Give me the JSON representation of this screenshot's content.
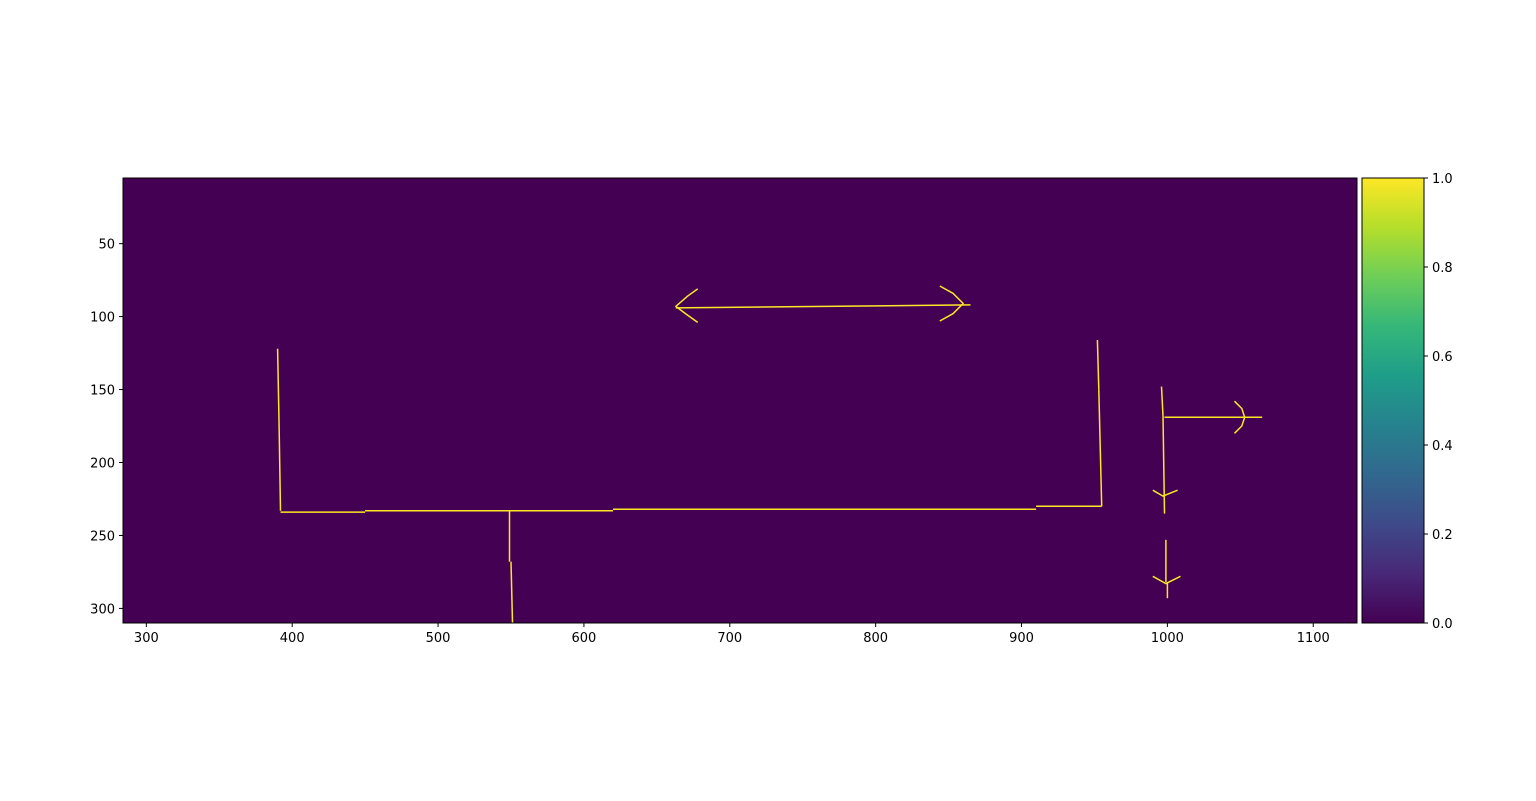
{
  "chart_data": {
    "type": "heatmap",
    "title": "",
    "xlabel": "",
    "ylabel": "",
    "xlim": [
      284,
      1130
    ],
    "ylim": [
      310,
      5
    ],
    "y_inverted": true,
    "grid": false,
    "x_ticks": [
      300,
      400,
      500,
      600,
      700,
      800,
      900,
      1000,
      1100
    ],
    "y_ticks": [
      50,
      100,
      150,
      200,
      250,
      300
    ],
    "background_value": 0.0,
    "line_value": 1.0,
    "colormap": "viridis",
    "colors": {
      "low": "#440154",
      "high": "#fde725"
    },
    "colorbar": {
      "placement": "right",
      "range": [
        0.0,
        1.0
      ],
      "ticks": [
        "0.0",
        "0.2",
        "0.4",
        "0.6",
        "0.8",
        "1.0"
      ],
      "stops": [
        "#440154",
        "#482878",
        "#3e4a89",
        "#31688e",
        "#26828e",
        "#1f9e89",
        "#35b779",
        "#6ece58",
        "#b5de2b",
        "#fde725"
      ]
    },
    "segments": [
      {
        "x": [
          390,
          391
        ],
        "y": [
          122,
          175
        ]
      },
      {
        "x": [
          391,
          392
        ],
        "y": [
          175,
          233
        ]
      },
      {
        "x": [
          392,
          450
        ],
        "y": [
          234,
          234
        ]
      },
      {
        "x": [
          450,
          620
        ],
        "y": [
          233,
          233
        ]
      },
      {
        "x": [
          620,
          910
        ],
        "y": [
          232,
          232
        ]
      },
      {
        "x": [
          910,
          955
        ],
        "y": [
          230,
          230
        ]
      },
      {
        "x": [
          952,
          953
        ],
        "y": [
          116,
          150
        ]
      },
      {
        "x": [
          953,
          955
        ],
        "y": [
          150,
          230
        ]
      },
      {
        "x": [
          549,
          549
        ],
        "y": [
          233,
          268
        ]
      },
      {
        "x": [
          550,
          551
        ],
        "y": [
          268,
          310
        ]
      },
      {
        "x": [
          663,
          865
        ],
        "y": [
          94,
          92
        ]
      },
      {
        "x": [
          678,
          671,
          663,
          671,
          678
        ],
        "y": [
          81,
          86,
          93,
          99,
          104
        ]
      },
      {
        "x": [
          844,
          853,
          860,
          853,
          844
        ],
        "y": [
          79,
          84,
          91,
          98,
          103
        ]
      },
      {
        "x": [
          996,
          997
        ],
        "y": [
          148,
          168
        ]
      },
      {
        "x": [
          997,
          998
        ],
        "y": [
          168,
          235
        ]
      },
      {
        "x": [
          998,
          1065
        ],
        "y": [
          169,
          169
        ]
      },
      {
        "x": [
          1046,
          1051,
          1053,
          1051,
          1046
        ],
        "y": [
          158,
          163,
          169,
          175,
          180
        ]
      },
      {
        "x": [
          990,
          997,
          1007
        ],
        "y": [
          219,
          223,
          219
        ]
      },
      {
        "x": [
          999,
          999
        ],
        "y": [
          253,
          282
        ]
      },
      {
        "x": [
          1000,
          1000
        ],
        "y": [
          282,
          293
        ]
      },
      {
        "x": [
          990,
          999,
          1009
        ],
        "y": [
          278,
          283,
          278
        ]
      }
    ]
  }
}
